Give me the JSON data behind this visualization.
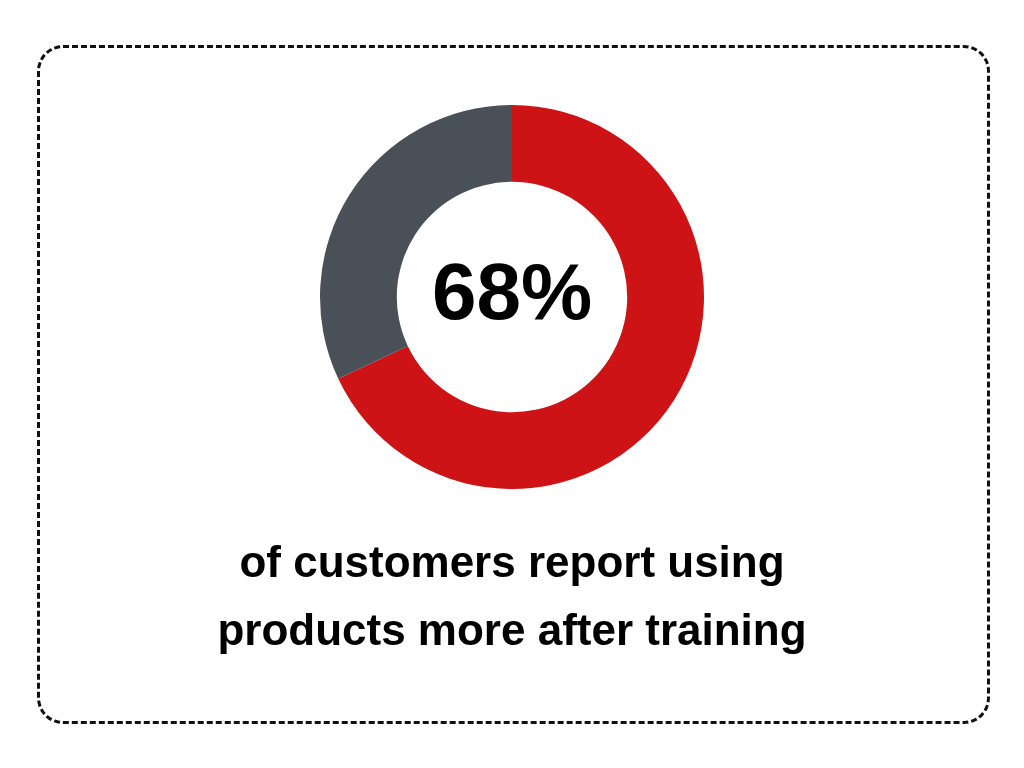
{
  "chart_data": {
    "type": "donut",
    "categories": [
      null,
      null
    ],
    "values": [
      68,
      32
    ],
    "colors": [
      "#cd1316",
      "#4a5058"
    ],
    "value_labels": [
      "68%",
      null
    ],
    "annotations": [
      "of customers report using products more after training"
    ],
    "legend": false
  }
}
